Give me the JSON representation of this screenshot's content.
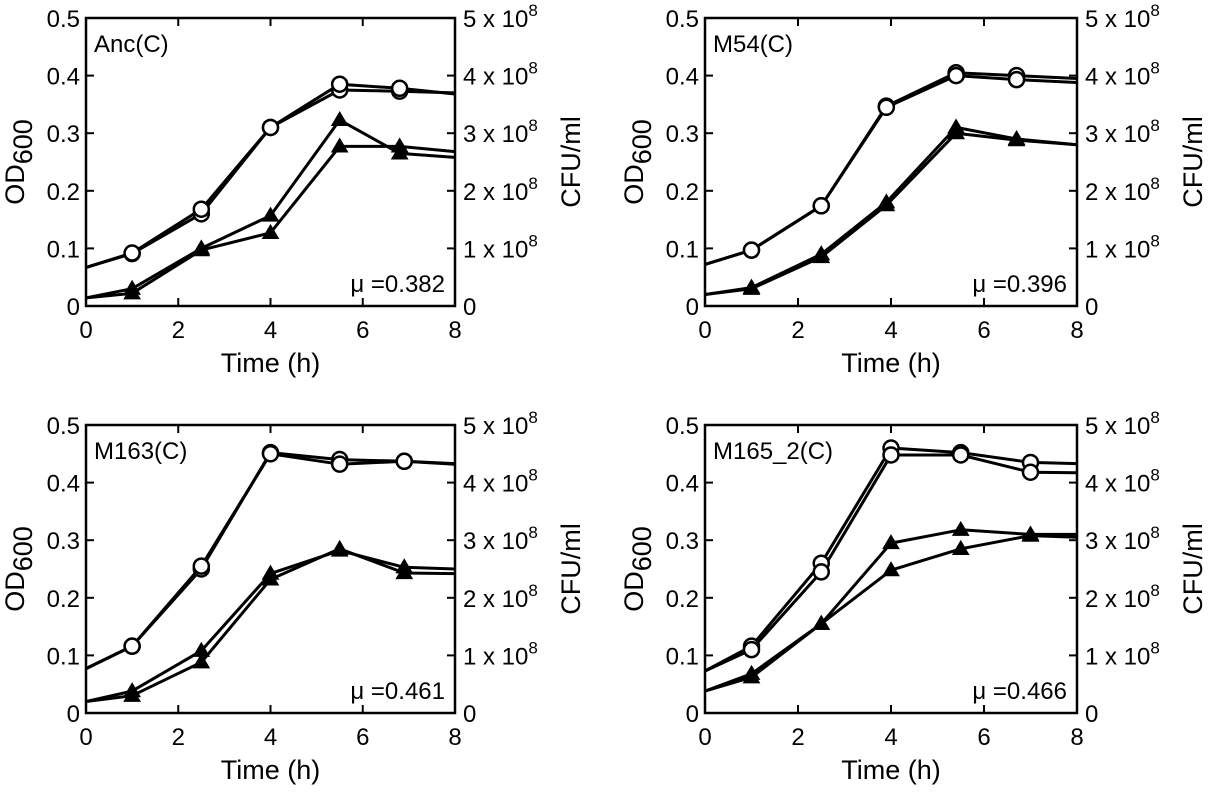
{
  "chart_data": [
    {
      "type": "line",
      "title": "Anc(C)",
      "annotation": "μ =0.382",
      "xlabel": "Time (h)",
      "ylabel_main": "OD",
      "ylabel_sub": "600",
      "ylabel_right": "CFU/ml",
      "xlim": [
        0,
        8
      ],
      "ylim": [
        0,
        0.5
      ],
      "ylim_right": [
        0,
        500000000
      ],
      "x_ticks": [
        "0",
        "2",
        "4",
        "6",
        "8"
      ],
      "y_ticks": [
        "0",
        "0.1",
        "0.2",
        "0.3",
        "0.4",
        "0.5"
      ],
      "y_right_ticks": [
        {
          "base": "0",
          "exp": ""
        },
        {
          "base": "1 x 10",
          "exp": "8"
        },
        {
          "base": "2 x 10",
          "exp": "8"
        },
        {
          "base": "3 x 10",
          "exp": "8"
        },
        {
          "base": "4 x 10",
          "exp": "8"
        },
        {
          "base": "5 x 10",
          "exp": "8"
        }
      ],
      "series": [
        {
          "marker": "circle",
          "axis": "left",
          "points": [
            [
              0,
              0.067
            ],
            [
              1,
              0.091
            ],
            [
              2.5,
              0.16
            ],
            [
              4,
              0.31
            ],
            [
              5.5,
              0.375
            ],
            [
              6.8,
              0.373
            ],
            [
              8,
              0.37
            ]
          ],
          "marked": [
            1,
            2,
            3,
            4,
            5
          ]
        },
        {
          "marker": "circle",
          "axis": "left",
          "points": [
            [
              0,
              0.067
            ],
            [
              1,
              0.092
            ],
            [
              2.5,
              0.168
            ],
            [
              4,
              0.31
            ],
            [
              5.5,
              0.385
            ],
            [
              6.8,
              0.378
            ],
            [
              8,
              0.368
            ]
          ],
          "marked": [
            1,
            2,
            3,
            4,
            5
          ]
        },
        {
          "marker": "triangle",
          "axis": "right",
          "points": [
            [
              0,
              14000000
            ],
            [
              1,
              22000000
            ],
            [
              2.5,
              97000000
            ],
            [
              4,
              127000000
            ],
            [
              5.5,
              277000000
            ],
            [
              6.8,
              277000000
            ],
            [
              8,
              268000000
            ]
          ],
          "marked": [
            1,
            2,
            3,
            4,
            5
          ]
        },
        {
          "marker": "triangle",
          "axis": "right",
          "points": [
            [
              0,
              14000000
            ],
            [
              1,
              30000000
            ],
            [
              2.5,
              100000000
            ],
            [
              4,
              157000000
            ],
            [
              5.5,
              323000000
            ],
            [
              6.8,
              265000000
            ],
            [
              8,
              258000000
            ]
          ],
          "marked": [
            1,
            2,
            3,
            4,
            5
          ]
        }
      ]
    },
    {
      "type": "line",
      "title": "M54(C)",
      "annotation": "μ =0.396",
      "xlabel": "Time (h)",
      "ylabel_main": "OD",
      "ylabel_sub": "600",
      "ylabel_right": "CFU/ml",
      "xlim": [
        0,
        8
      ],
      "ylim": [
        0,
        0.5
      ],
      "ylim_right": [
        0,
        500000000
      ],
      "x_ticks": [
        "0",
        "2",
        "4",
        "6",
        "8"
      ],
      "y_ticks": [
        "0",
        "0.1",
        "0.2",
        "0.3",
        "0.4",
        "0.5"
      ],
      "y_right_ticks": [
        {
          "base": "0",
          "exp": ""
        },
        {
          "base": "1 x 10",
          "exp": "8"
        },
        {
          "base": "2 x 10",
          "exp": "8"
        },
        {
          "base": "3 x 10",
          "exp": "8"
        },
        {
          "base": "4 x 10",
          "exp": "8"
        },
        {
          "base": "5 x 10",
          "exp": "8"
        }
      ],
      "series": [
        {
          "marker": "circle",
          "axis": "left",
          "points": [
            [
              0,
              0.072
            ],
            [
              1,
              0.097
            ],
            [
              2.5,
              0.174
            ],
            [
              3.9,
              0.347
            ],
            [
              5.4,
              0.405
            ],
            [
              6.7,
              0.4
            ],
            [
              8,
              0.395
            ]
          ],
          "marked": [
            1,
            2,
            3,
            4,
            5
          ]
        },
        {
          "marker": "circle",
          "axis": "left",
          "points": [
            [
              0,
              0.072
            ],
            [
              1,
              0.097
            ],
            [
              2.5,
              0.174
            ],
            [
              3.9,
              0.345
            ],
            [
              5.4,
              0.4
            ],
            [
              6.7,
              0.393
            ],
            [
              8,
              0.388
            ]
          ],
          "marked": [
            1,
            2,
            3,
            4,
            5
          ]
        },
        {
          "marker": "triangle",
          "axis": "right",
          "points": [
            [
              0,
              20000000
            ],
            [
              1,
              32000000
            ],
            [
              2.5,
              90000000
            ],
            [
              3.9,
              180000000
            ],
            [
              5.4,
              310000000
            ],
            [
              6.7,
              290000000
            ],
            [
              8,
              280000000
            ]
          ],
          "marked": [
            1,
            2,
            3,
            4,
            5
          ]
        },
        {
          "marker": "triangle",
          "axis": "right",
          "points": [
            [
              0,
              20000000
            ],
            [
              1,
              30000000
            ],
            [
              2.5,
              85000000
            ],
            [
              3.9,
              175000000
            ],
            [
              5.4,
              300000000
            ],
            [
              6.7,
              288000000
            ],
            [
              8,
              280000000
            ]
          ],
          "marked": [
            1,
            2,
            3,
            4,
            5
          ]
        }
      ]
    },
    {
      "type": "line",
      "title": "M163(C)",
      "annotation": "μ =0.461",
      "xlabel": "Time (h)",
      "ylabel_main": "OD",
      "ylabel_sub": "600",
      "ylabel_right": "CFU/ml",
      "xlim": [
        0,
        8
      ],
      "ylim": [
        0,
        0.5
      ],
      "ylim_right": [
        0,
        500000000
      ],
      "x_ticks": [
        "0",
        "2",
        "4",
        "6",
        "8"
      ],
      "y_ticks": [
        "0",
        "0.1",
        "0.2",
        "0.3",
        "0.4",
        "0.5"
      ],
      "y_right_ticks": [
        {
          "base": "0",
          "exp": ""
        },
        {
          "base": "1 x 10",
          "exp": "8"
        },
        {
          "base": "2 x 10",
          "exp": "8"
        },
        {
          "base": "3 x 10",
          "exp": "8"
        },
        {
          "base": "4 x 10",
          "exp": "8"
        },
        {
          "base": "5 x 10",
          "exp": "8"
        }
      ],
      "series": [
        {
          "marker": "circle",
          "axis": "left",
          "points": [
            [
              0,
              0.077
            ],
            [
              1,
              0.116
            ],
            [
              2.5,
              0.25
            ],
            [
              4,
              0.452
            ],
            [
              5.5,
              0.44
            ],
            [
              6.9,
              0.437
            ],
            [
              8,
              0.433
            ]
          ],
          "marked": [
            1,
            2,
            3,
            4,
            5
          ]
        },
        {
          "marker": "circle",
          "axis": "left",
          "points": [
            [
              0,
              0.077
            ],
            [
              1,
              0.116
            ],
            [
              2.5,
              0.255
            ],
            [
              4,
              0.45
            ],
            [
              5.5,
              0.432
            ],
            [
              6.9,
              0.437
            ],
            [
              8,
              0.432
            ]
          ],
          "marked": [
            1,
            2,
            3,
            4,
            5
          ]
        },
        {
          "marker": "triangle",
          "axis": "right",
          "points": [
            [
              0,
              20000000
            ],
            [
              1,
              38000000
            ],
            [
              2.5,
              108000000
            ],
            [
              4,
              242000000
            ],
            [
              5.5,
              282000000
            ],
            [
              6.9,
              253000000
            ],
            [
              8,
              250000000
            ]
          ],
          "marked": [
            1,
            2,
            3,
            4,
            5
          ]
        },
        {
          "marker": "triangle",
          "axis": "right",
          "points": [
            [
              0,
              20000000
            ],
            [
              1,
              30000000
            ],
            [
              2.5,
              88000000
            ],
            [
              4,
              232000000
            ],
            [
              5.5,
              285000000
            ],
            [
              6.9,
              243000000
            ],
            [
              8,
              242000000
            ]
          ],
          "marked": [
            1,
            2,
            3,
            4,
            5
          ]
        }
      ]
    },
    {
      "type": "line",
      "title": "M165_2(C)",
      "annotation": "μ =0.466",
      "xlabel": "Time (h)",
      "ylabel_main": "OD",
      "ylabel_sub": "600",
      "ylabel_right": "CFU/ml",
      "xlim": [
        0,
        8
      ],
      "ylim": [
        0,
        0.5
      ],
      "ylim_right": [
        0,
        500000000
      ],
      "x_ticks": [
        "0",
        "2",
        "4",
        "6",
        "8"
      ],
      "y_ticks": [
        "0",
        "0.1",
        "0.2",
        "0.3",
        "0.4",
        "0.5"
      ],
      "y_right_ticks": [
        {
          "base": "0",
          "exp": ""
        },
        {
          "base": "1 x 10",
          "exp": "8"
        },
        {
          "base": "2 x 10",
          "exp": "8"
        },
        {
          "base": "3 x 10",
          "exp": "8"
        },
        {
          "base": "4 x 10",
          "exp": "8"
        },
        {
          "base": "5 x 10",
          "exp": "8"
        }
      ],
      "series": [
        {
          "marker": "circle",
          "axis": "left",
          "points": [
            [
              0,
              0.073
            ],
            [
              1,
              0.116
            ],
            [
              2.5,
              0.26
            ],
            [
              4,
              0.46
            ],
            [
              5.5,
              0.452
            ],
            [
              7,
              0.435
            ],
            [
              8,
              0.433
            ]
          ],
          "marked": [
            1,
            2,
            3,
            4,
            5
          ]
        },
        {
          "marker": "circle",
          "axis": "left",
          "points": [
            [
              0,
              0.073
            ],
            [
              1,
              0.11
            ],
            [
              2.5,
              0.245
            ],
            [
              4,
              0.448
            ],
            [
              5.5,
              0.448
            ],
            [
              7,
              0.418
            ],
            [
              8,
              0.417
            ]
          ],
          "marked": [
            1,
            2,
            3,
            4,
            5
          ]
        },
        {
          "marker": "triangle",
          "axis": "right",
          "points": [
            [
              0,
              38000000
            ],
            [
              1,
              68000000
            ],
            [
              2.5,
              155000000
            ],
            [
              4,
              295000000
            ],
            [
              5.5,
              318000000
            ],
            [
              7,
              310000000
            ],
            [
              8,
              310000000
            ]
          ],
          "marked": [
            1,
            2,
            3,
            4,
            5
          ]
        },
        {
          "marker": "triangle",
          "axis": "right",
          "points": [
            [
              0,
              38000000
            ],
            [
              1,
              62000000
            ],
            [
              2.5,
              155000000
            ],
            [
              4,
              248000000
            ],
            [
              5.5,
              285000000
            ],
            [
              7,
              308000000
            ],
            [
              8,
              305000000
            ]
          ],
          "marked": [
            1,
            2,
            3,
            4,
            5
          ]
        }
      ]
    }
  ]
}
